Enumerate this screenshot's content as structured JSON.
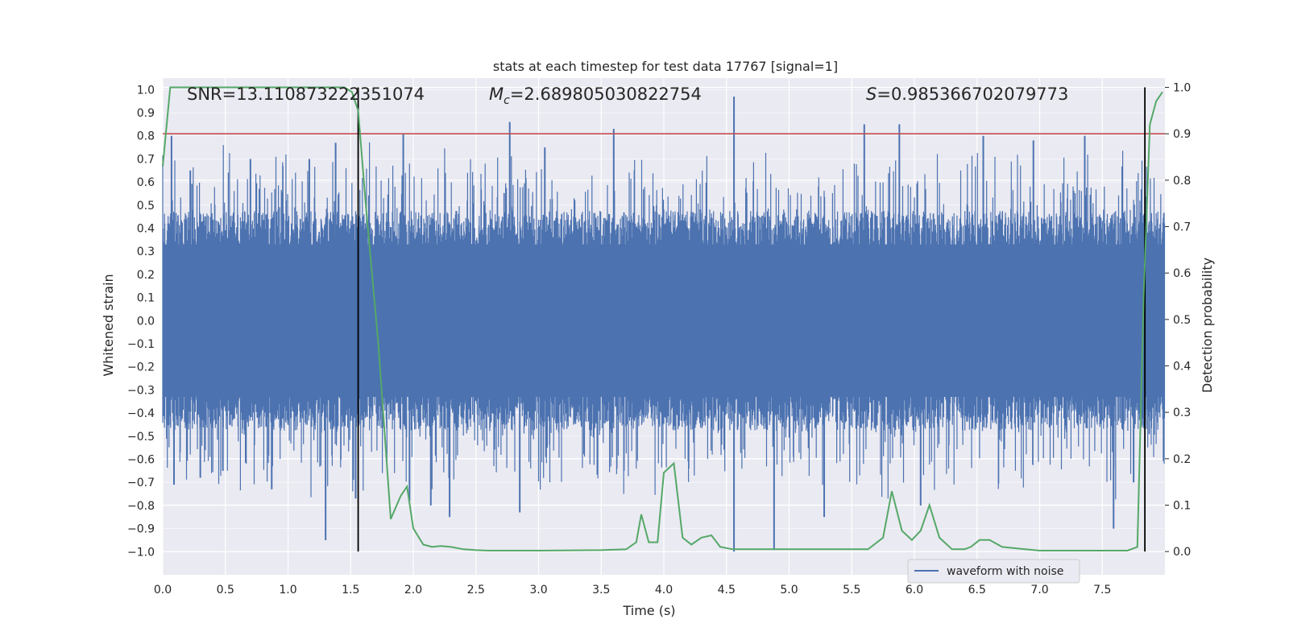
{
  "chart_data": {
    "type": "line",
    "title": "stats at each timestep for test data 17767 [signal=1]",
    "xlabel": "Time (s)",
    "ylabel": "Whitened strain",
    "y2label": "Detection probability",
    "xlim": [
      0.0,
      8.0
    ],
    "ylim": [
      -1.1,
      1.05
    ],
    "y2lim": [
      -0.05,
      1.02
    ],
    "x_ticks": [
      "0.0",
      "0.5",
      "1.0",
      "1.5",
      "2.0",
      "2.5",
      "3.0",
      "3.5",
      "4.0",
      "4.5",
      "5.0",
      "5.5",
      "6.0",
      "6.5",
      "7.0",
      "7.5"
    ],
    "y_ticks": [
      "1.0",
      "0.9",
      "0.8",
      "0.7",
      "0.6",
      "0.5",
      "0.4",
      "0.3",
      "0.2",
      "0.1",
      "0.0",
      "-0.1",
      "-0.2",
      "-0.3",
      "-0.4",
      "-0.5",
      "-0.6",
      "-0.7",
      "-0.8",
      "-0.9",
      "-1.0"
    ],
    "y2_ticks": [
      "1.0",
      "0.9",
      "0.8",
      "0.7",
      "0.6",
      "0.5",
      "0.4",
      "0.3",
      "0.2",
      "0.1",
      "0.0"
    ],
    "annotations": {
      "snr": "SNR=13.110873222351074",
      "mc_symbol": "M",
      "mc_sub": "c",
      "mc_value": "=2.689805030822754",
      "s_symbol": "S",
      "s_value": "=0.985366702079773"
    },
    "threshold": 0.9,
    "vlines": [
      1.56,
      7.84
    ],
    "waveform": {
      "name": "waveform with noise",
      "color": "#4c72b0",
      "typical_envelope": 0.38,
      "peaks": [
        {
          "x": 0.07,
          "y": 0.8
        },
        {
          "x": 0.09,
          "y": -0.71
        },
        {
          "x": 0.22,
          "y": 0.65
        },
        {
          "x": 0.3,
          "y": -0.68
        },
        {
          "x": 0.48,
          "y": -0.65
        },
        {
          "x": 0.7,
          "y": 0.7
        },
        {
          "x": 0.87,
          "y": -0.73
        },
        {
          "x": 1.17,
          "y": 0.7
        },
        {
          "x": 1.3,
          "y": -0.95
        },
        {
          "x": 1.38,
          "y": 0.77
        },
        {
          "x": 1.54,
          "y": -0.77
        },
        {
          "x": 1.92,
          "y": 0.81
        },
        {
          "x": 1.97,
          "y": -0.78
        },
        {
          "x": 2.14,
          "y": -0.8
        },
        {
          "x": 2.29,
          "y": -0.85
        },
        {
          "x": 2.77,
          "y": 0.86
        },
        {
          "x": 2.85,
          "y": -0.83
        },
        {
          "x": 3.05,
          "y": 0.75
        },
        {
          "x": 3.6,
          "y": 0.83
        },
        {
          "x": 4.56,
          "y": 0.97
        },
        {
          "x": 4.56,
          "y": -1.0
        },
        {
          "x": 4.88,
          "y": -0.99
        },
        {
          "x": 5.28,
          "y": -0.85
        },
        {
          "x": 5.6,
          "y": 0.85
        },
        {
          "x": 5.88,
          "y": 0.85
        },
        {
          "x": 6.05,
          "y": -0.8
        },
        {
          "x": 6.55,
          "y": 0.8
        },
        {
          "x": 6.95,
          "y": 0.78
        },
        {
          "x": 7.36,
          "y": 0.8
        },
        {
          "x": 7.59,
          "y": -0.9
        },
        {
          "x": 7.75,
          "y": -0.7
        }
      ]
    },
    "probability": {
      "color": "#55a868",
      "x": [
        0.0,
        0.06,
        0.15,
        0.5,
        1.0,
        1.45,
        1.51,
        1.56,
        1.62,
        1.72,
        1.82,
        1.9,
        1.95,
        2.0,
        2.08,
        2.15,
        2.22,
        2.3,
        2.4,
        2.5,
        2.6,
        3.0,
        3.5,
        3.7,
        3.78,
        3.82,
        3.88,
        3.95,
        4.0,
        4.08,
        4.15,
        4.22,
        4.3,
        4.38,
        4.45,
        4.55,
        4.8,
        5.5,
        5.63,
        5.75,
        5.82,
        5.9,
        5.98,
        6.05,
        6.12,
        6.2,
        6.3,
        6.4,
        6.45,
        6.52,
        6.6,
        6.7,
        7.0,
        7.7,
        7.78,
        7.83,
        7.88,
        7.93,
        7.98
      ],
      "y": [
        0.83,
        1.0,
        1.0,
        1.0,
        1.0,
        1.0,
        0.99,
        0.95,
        0.75,
        0.45,
        0.07,
        0.12,
        0.14,
        0.05,
        0.015,
        0.01,
        0.012,
        0.01,
        0.005,
        0.003,
        0.002,
        0.002,
        0.003,
        0.005,
        0.02,
        0.08,
        0.02,
        0.02,
        0.17,
        0.19,
        0.03,
        0.015,
        0.03,
        0.035,
        0.01,
        0.005,
        0.005,
        0.005,
        0.005,
        0.03,
        0.13,
        0.045,
        0.025,
        0.045,
        0.1,
        0.03,
        0.005,
        0.005,
        0.01,
        0.025,
        0.025,
        0.01,
        0.002,
        0.002,
        0.01,
        0.55,
        0.92,
        0.97,
        0.99
      ]
    }
  }
}
